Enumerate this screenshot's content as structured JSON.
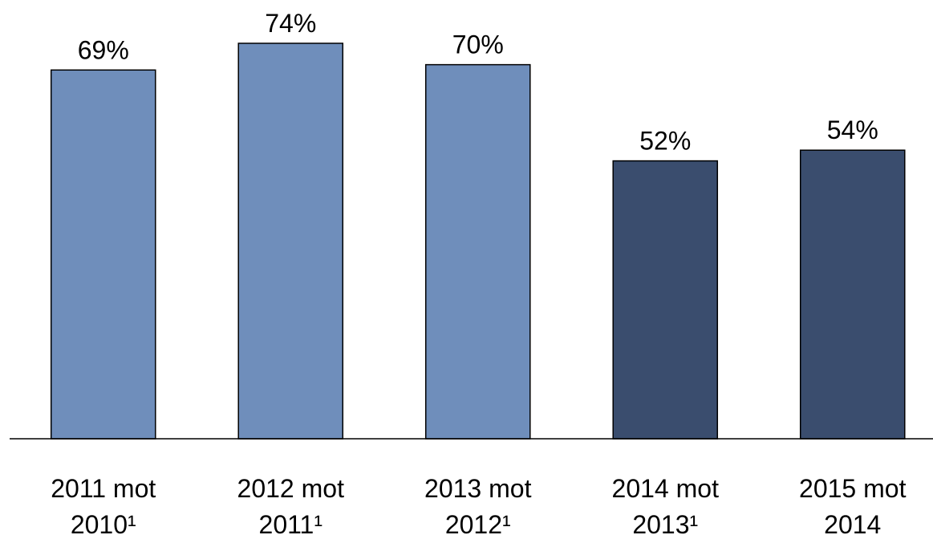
{
  "chart_data": {
    "type": "bar",
    "categories": [
      "2011 mot 2010¹",
      "2012 mot 2011¹",
      "2013 mot 2012¹",
      "2014 mot 2013¹",
      "2015 mot 2014"
    ],
    "values": [
      69,
      74,
      70,
      52,
      54
    ],
    "value_labels": [
      "69%",
      "74%",
      "70%",
      "52%",
      "54%"
    ],
    "colors": [
      "#6f8ebb",
      "#6f8ebb",
      "#6f8ebb",
      "#3a4d6e",
      "#3a4d6e"
    ],
    "ylim": [
      0,
      80
    ]
  }
}
